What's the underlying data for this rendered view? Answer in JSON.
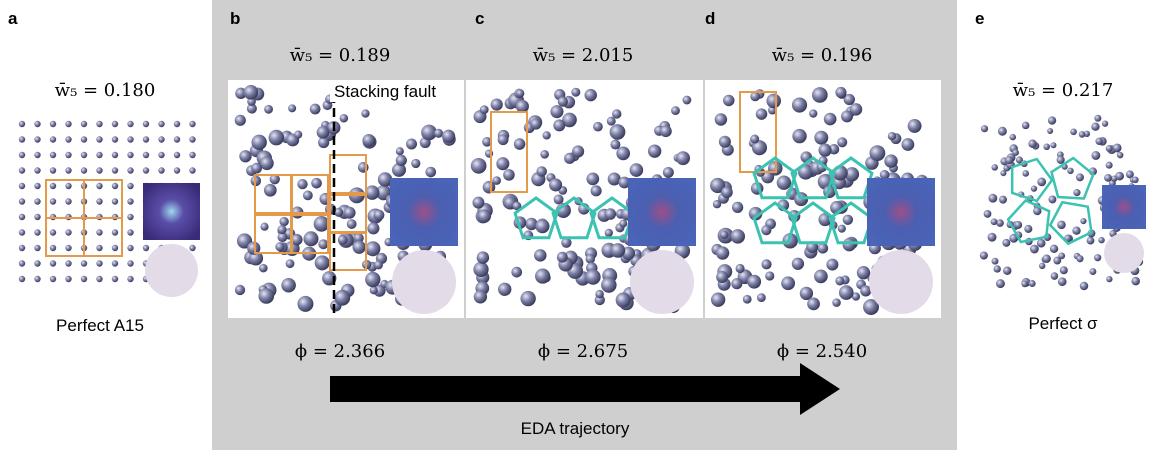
{
  "panels": [
    {
      "label": "a",
      "w5": "w̄₅ = 0.180",
      "caption": "Perfect A15"
    },
    {
      "label": "b",
      "w5": "w̄₅ = 0.189",
      "phi": "ϕ = 2.366",
      "annotation": "Stacking fault"
    },
    {
      "label": "c",
      "w5": "w̄₅ = 2.015",
      "phi": "ϕ = 2.675"
    },
    {
      "label": "d",
      "w5": "w̄₅ = 0.196",
      "phi": "ϕ = 2.540"
    },
    {
      "label": "e",
      "w5": "w̄₅ = 0.217",
      "caption": "Perfect σ"
    }
  ],
  "arrow_label": "EDA trajectory"
}
